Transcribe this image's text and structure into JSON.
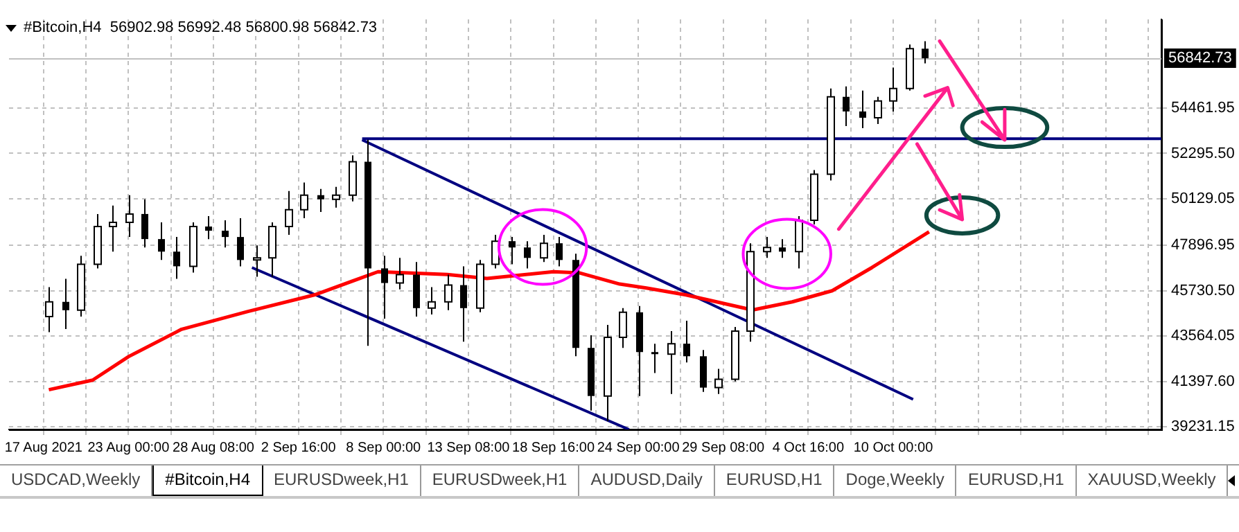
{
  "chart_data": {
    "type": "candlestick",
    "title": "#Bitcoin,H4  56902.98 56992.48 56800.98 56842.73",
    "x": [
      "2021-08-18T00:00",
      "2021-08-19T00:00",
      "2021-08-20T00:00",
      "2021-08-21T00:00",
      "2021-08-22T00:00",
      "2021-08-23T00:00",
      "2021-08-24T00:00",
      "2021-08-25T00:00",
      "2021-08-26T00:00",
      "2021-08-27T00:00",
      "2021-08-28T00:00",
      "2021-08-29T00:00",
      "2021-08-30T00:00",
      "2021-08-31T00:00",
      "2021-09-01T00:00",
      "2021-09-02T00:00",
      "2021-09-03T00:00",
      "2021-09-04T00:00",
      "2021-09-05T00:00",
      "2021-09-06T00:00",
      "2021-09-07T00:00",
      "2021-09-08T00:00",
      "2021-09-09T00:00",
      "2021-09-10T00:00",
      "2021-09-11T00:00",
      "2021-09-12T00:00",
      "2021-09-13T00:00",
      "2021-09-14T00:00",
      "2021-09-15T00:00",
      "2021-09-16T00:00",
      "2021-09-17T00:00",
      "2021-09-18T00:00",
      "2021-09-19T00:00",
      "2021-09-20T00:00",
      "2021-09-21T00:00",
      "2021-09-22T00:00",
      "2021-09-23T00:00",
      "2021-09-24T00:00",
      "2021-09-25T00:00",
      "2021-09-26T00:00",
      "2021-09-27T00:00",
      "2021-09-28T00:00",
      "2021-09-29T00:00",
      "2021-09-30T00:00",
      "2021-10-01T00:00",
      "2021-10-02T00:00",
      "2021-10-03T00:00",
      "2021-10-04T00:00",
      "2021-10-05T00:00",
      "2021-10-06T00:00",
      "2021-10-07T00:00",
      "2021-10-08T00:00",
      "2021-10-09T00:00",
      "2021-10-10T00:00",
      "2021-10-11T00:00",
      "2021-10-12T00:00"
    ],
    "ohlc": [
      [
        44500,
        45900,
        43750,
        45200
      ],
      [
        45200,
        46300,
        43900,
        44800
      ],
      [
        44800,
        47400,
        44500,
        47000
      ],
      [
        47000,
        49400,
        46800,
        48800
      ],
      [
        48800,
        49800,
        47600,
        49000
      ],
      [
        49000,
        50300,
        48300,
        49400
      ],
      [
        49400,
        50100,
        47800,
        48200
      ],
      [
        48200,
        49000,
        47200,
        47600
      ],
      [
        47600,
        48300,
        46300,
        46900
      ],
      [
        46900,
        49000,
        46600,
        48800
      ],
      [
        48800,
        49300,
        48200,
        48600
      ],
      [
        48600,
        49100,
        47800,
        48300
      ],
      [
        48300,
        49200,
        46900,
        47200
      ],
      [
        47200,
        47900,
        46400,
        47300
      ],
      [
        47300,
        49000,
        46400,
        48800
      ],
      [
        48800,
        50500,
        48400,
        49600
      ],
      [
        49600,
        50900,
        49200,
        50300
      ],
      [
        50300,
        50600,
        49500,
        50100
      ],
      [
        50100,
        50700,
        49700,
        50300
      ],
      [
        50300,
        52200,
        50000,
        51900
      ],
      [
        51900,
        52950,
        43100,
        46800
      ],
      [
        46800,
        47400,
        44400,
        46100
      ],
      [
        46100,
        47300,
        45800,
        46500
      ],
      [
        46500,
        47100,
        44500,
        44900
      ],
      [
        44900,
        45900,
        44600,
        45200
      ],
      [
        45200,
        46500,
        44800,
        46000
      ],
      [
        46000,
        46900,
        43300,
        44900
      ],
      [
        44900,
        47200,
        44700,
        47000
      ],
      [
        47000,
        48400,
        46800,
        48100
      ],
      [
        48100,
        48300,
        47000,
        47800
      ],
      [
        47800,
        48100,
        46800,
        47300
      ],
      [
        47300,
        48400,
        47100,
        48000
      ],
      [
        48000,
        48300,
        46900,
        47200
      ],
      [
        47200,
        47500,
        42600,
        43000
      ],
      [
        43000,
        43600,
        40000,
        40700
      ],
      [
        40700,
        44100,
        39500,
        43500
      ],
      [
        43500,
        44900,
        43000,
        44700
      ],
      [
        44700,
        45000,
        40700,
        42800
      ],
      [
        42800,
        43200,
        41800,
        42700
      ],
      [
        42700,
        43800,
        40800,
        43200
      ],
      [
        43200,
        44300,
        42300,
        42600
      ],
      [
        42600,
        42900,
        40900,
        41100
      ],
      [
        41100,
        42000,
        40800,
        41500
      ],
      [
        41500,
        44000,
        41400,
        43800
      ],
      [
        43800,
        48000,
        43300,
        47600
      ],
      [
        47600,
        48300,
        47300,
        47800
      ],
      [
        47800,
        48200,
        47300,
        47600
      ],
      [
        47600,
        49300,
        46800,
        49100
      ],
      [
        49100,
        51500,
        48900,
        51300
      ],
      [
        51300,
        55400,
        51000,
        55000
      ],
      [
        55000,
        55500,
        53600,
        54300
      ],
      [
        54300,
        55300,
        53500,
        54000
      ],
      [
        54000,
        55000,
        53700,
        54800
      ],
      [
        54800,
        56400,
        54300,
        55400
      ],
      [
        55400,
        57500,
        55300,
        57300
      ],
      [
        57300,
        57660,
        56600,
        56842.73
      ]
    ],
    "series": [
      {
        "type": "line",
        "color": "#ff0000",
        "x": [
          "2021-08-18T00:00",
          "2021-08-20T18:00",
          "2021-08-23T00:00",
          "2021-08-26T08:00",
          "2021-08-30T12:00",
          "2021-09-03T16:00",
          "2021-09-07T16:00",
          "2021-09-12T00:00",
          "2021-09-14T12:00",
          "2021-09-18T16:00",
          "2021-09-20T08:00",
          "2021-09-22T20:00",
          "2021-09-24T12:00",
          "2021-09-27T00:00",
          "2021-10-01T04:00",
          "2021-10-03T16:00",
          "2021-10-06T04:00",
          "2021-10-08T16:00",
          "2021-10-12T06:00"
        ],
        "values": [
          41000,
          41460,
          42580,
          43890,
          44740,
          45530,
          46640,
          46510,
          46320,
          46640,
          46580,
          46050,
          45860,
          45530,
          44810,
          45200,
          45730,
          46840,
          48550
        ]
      },
      {
        "type": "line",
        "color": "#000080",
        "x": [
          "2021-09-06T16:00",
          "2021-10-11T06:00"
        ],
        "values": [
          52940,
          40540
        ]
      },
      {
        "type": "line",
        "color": "#000080",
        "x": [
          "2021-08-30T18:00",
          "2021-09-23T10:00"
        ],
        "values": [
          46840,
          39100
        ]
      },
      {
        "type": "line",
        "color": "#000080",
        "x": [
          "2021-09-06T16:00",
          "2021-10-26T20:00"
        ],
        "values": [
          53000,
          53000
        ]
      }
    ],
    "xlim": [
      "2021-08-15T12:00",
      "2021-10-26T20:00"
    ],
    "xticks": [
      {
        "value": "2021-08-17T16:00",
        "label": "17 Aug 2021"
      },
      {
        "value": "2021-08-20T08:00",
        "label": null
      },
      {
        "value": "2021-08-23T00:00",
        "label": "23 Aug 00:00"
      },
      {
        "value": "2021-08-25T16:00",
        "label": null
      },
      {
        "value": "2021-08-28T08:00",
        "label": "28 Aug 08:00"
      },
      {
        "value": "2021-08-31T00:00",
        "label": null
      },
      {
        "value": "2021-09-02T16:00",
        "label": "2 Sep 16:00"
      },
      {
        "value": "2021-09-05T08:00",
        "label": null
      },
      {
        "value": "2021-09-08T00:00",
        "label": "8 Sep 00:00"
      },
      {
        "value": "2021-09-10T16:00",
        "label": null
      },
      {
        "value": "2021-09-13T08:00",
        "label": "13 Sep 08:00"
      },
      {
        "value": "2021-09-16T00:00",
        "label": null
      },
      {
        "value": "2021-09-18T16:00",
        "label": "18 Sep 16:00"
      },
      {
        "value": "2021-09-21T08:00",
        "label": null
      },
      {
        "value": "2021-09-24T00:00",
        "label": "24 Sep 00:00"
      },
      {
        "value": "2021-09-26T16:00",
        "label": null
      },
      {
        "value": "2021-09-29T08:00",
        "label": "29 Sep 08:00"
      },
      {
        "value": "2021-10-02T00:00",
        "label": null
      },
      {
        "value": "2021-10-04T16:00",
        "label": "4 Oct 16:00"
      },
      {
        "value": "2021-10-07T08:00",
        "label": null
      },
      {
        "value": "2021-10-10T00:00",
        "label": "10 Oct 00:00"
      },
      {
        "value": "2021-10-12T16:00",
        "label": null
      },
      {
        "value": "2021-10-15T08:00",
        "label": null
      },
      {
        "value": "2021-10-18T00:00",
        "label": null
      },
      {
        "value": "2021-10-20T16:00",
        "label": null
      },
      {
        "value": "2021-10-23T08:00",
        "label": null
      },
      {
        "value": "2021-10-26T00:00",
        "label": null
      }
    ],
    "ylim": [
      39100,
      58700
    ],
    "yticks": [
      39231.15,
      {
        "value": 41397.6,
        "label": "41397.60"
      },
      43564.05,
      {
        "value": 45730.5,
        "label": "45730.50"
      },
      47896.95,
      50129.05,
      {
        "value": 52295.5,
        "label": "52295.50"
      },
      54461.95
    ],
    "ref_lines": [
      {
        "axis": "y",
        "value": 56842.73,
        "label": "56842.73",
        "color": "#c0c0c0"
      }
    ],
    "grid": true,
    "annotations": [
      "USDCAD,Weekly",
      "#Bitcoin,H4",
      "EURUSDweek,H1",
      "EURUSDweek,H1",
      "AUDUSD,Daily",
      "EURUSD,H1",
      "Doge,Weekly",
      "EURUSD,H1",
      "XAUUSD,Weekly"
    ]
  }
}
